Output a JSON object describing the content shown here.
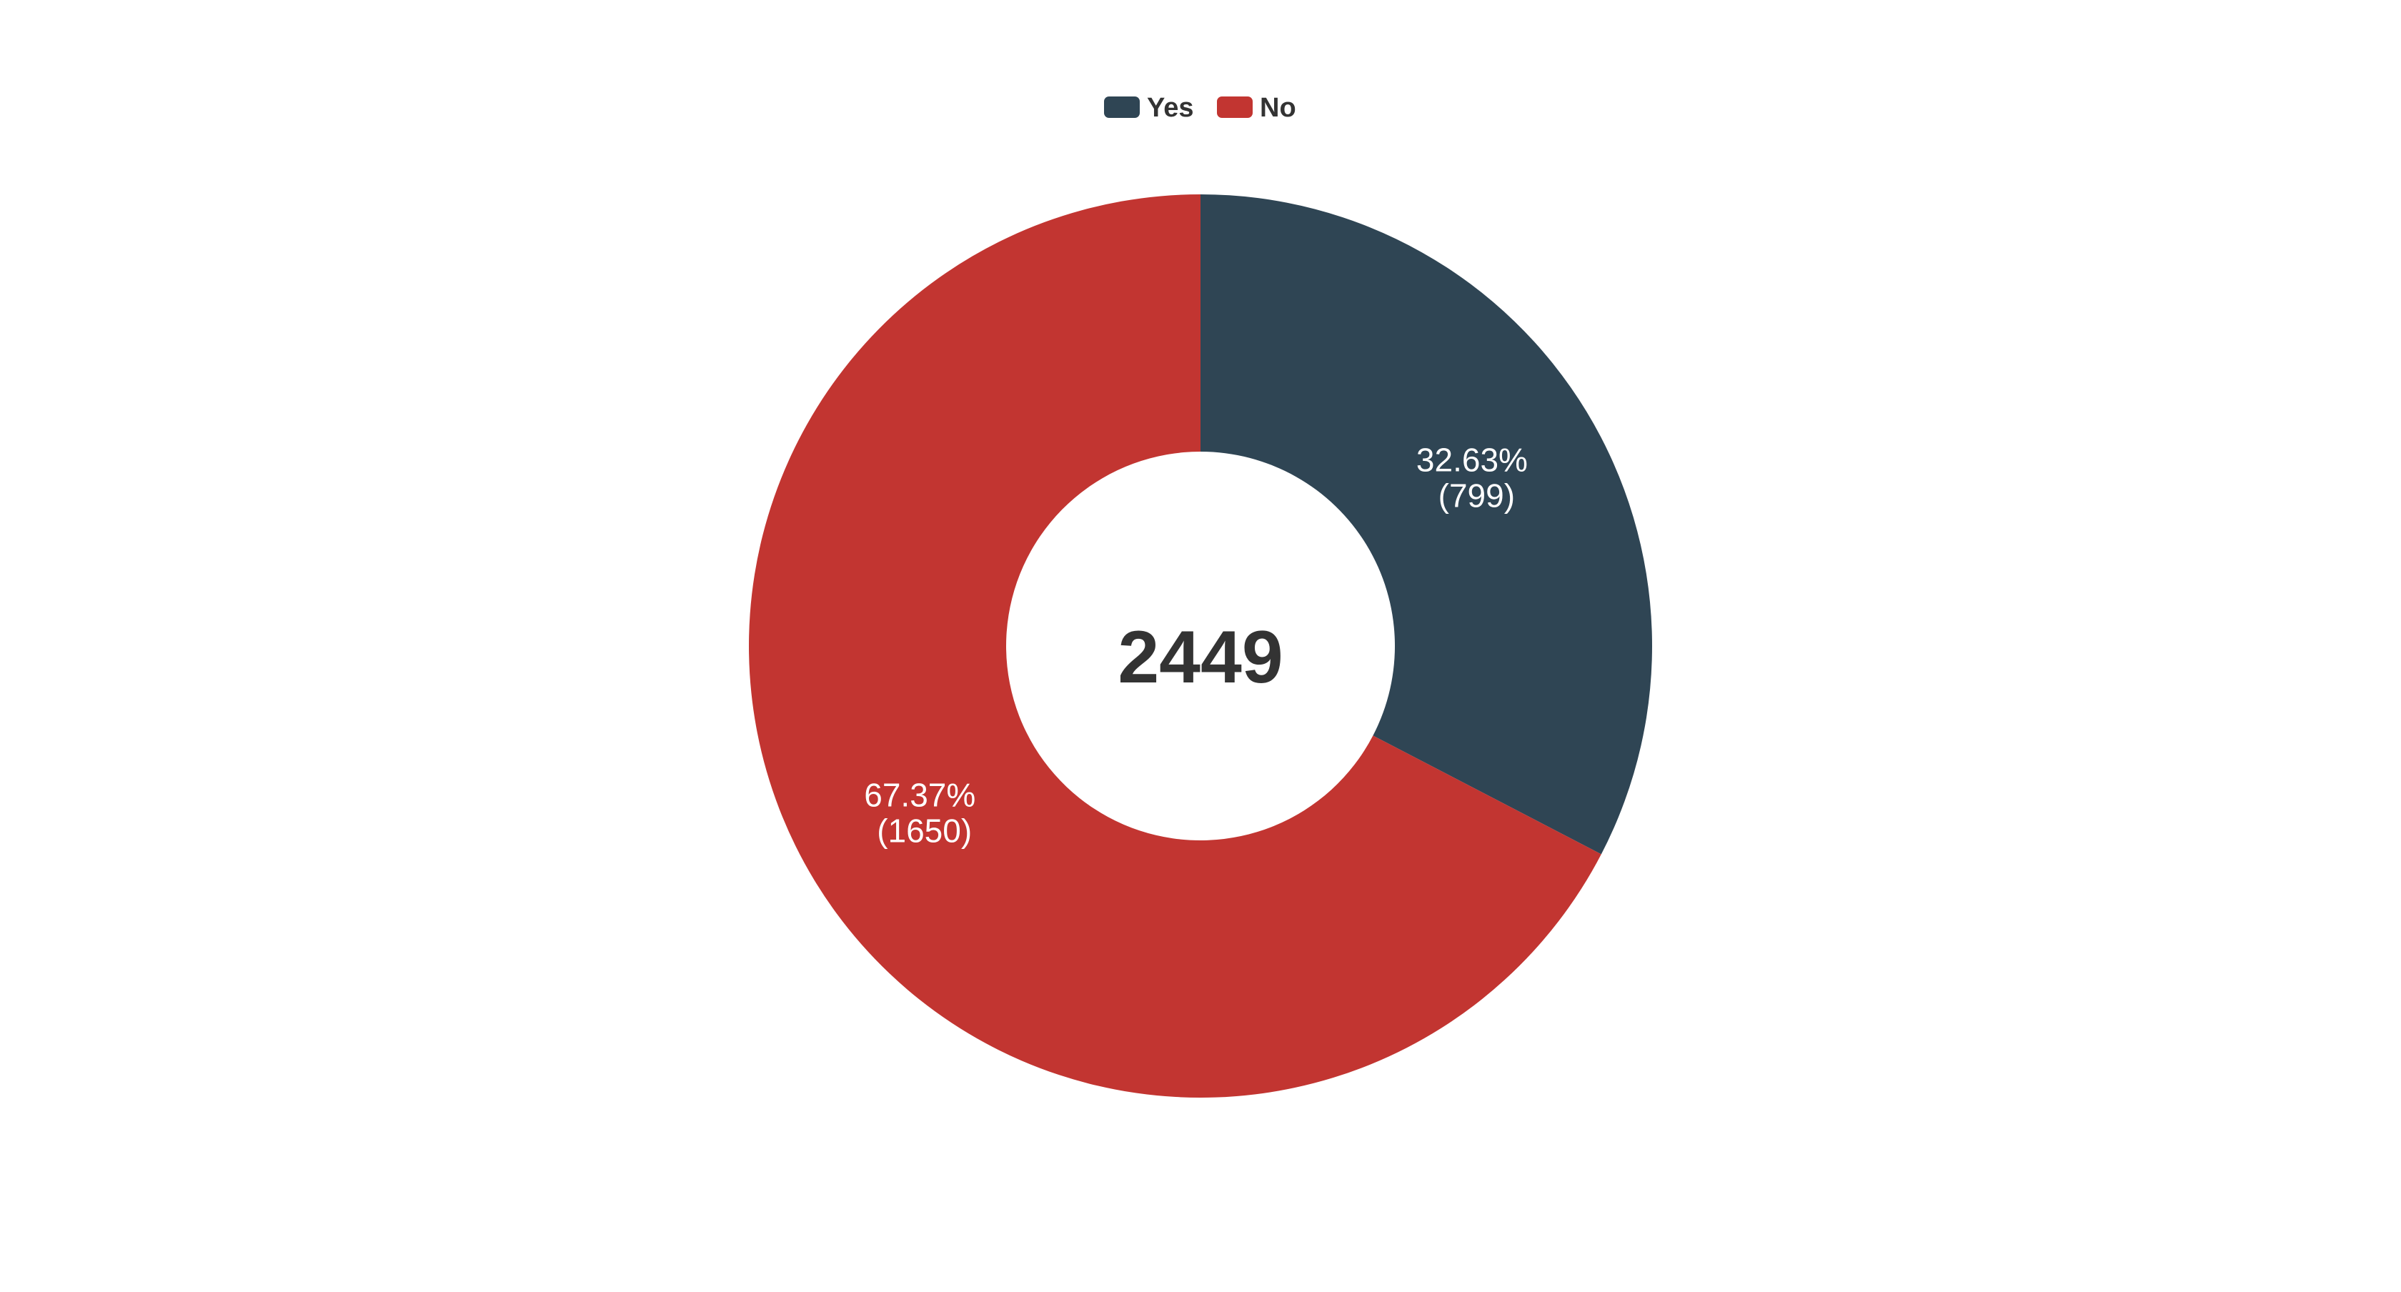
{
  "chart_data": {
    "type": "pie",
    "variant": "doughnut",
    "title": "",
    "total": "2449",
    "legend_position": "top-center",
    "series": [
      {
        "name": "Yes",
        "value": 799,
        "percent_label": "32.63%",
        "count_label": "(799)",
        "color": "#2f4554"
      },
      {
        "name": "No",
        "value": 1650,
        "percent_label": "67.37%",
        "count_label": "(1650)",
        "color": "#c23531"
      }
    ]
  }
}
